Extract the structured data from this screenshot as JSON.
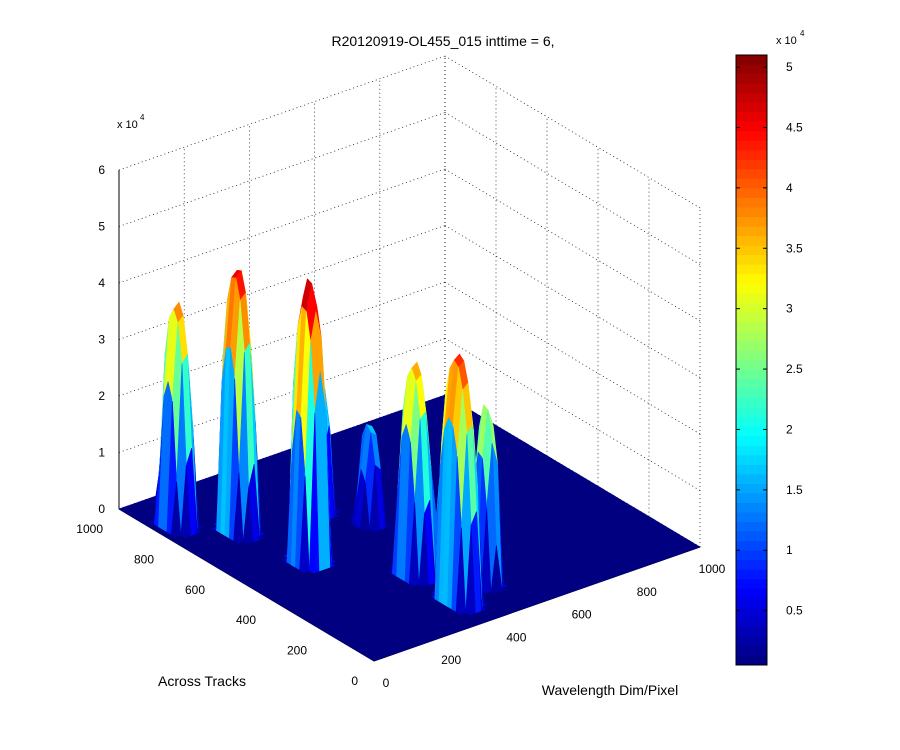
{
  "chart_data": {
    "type": "surface3d",
    "title": "R20120919-OL455_015 inttime = 6,",
    "xlabel": "Wavelength Dim/Pixel",
    "ylabel": "Across Tracks",
    "zlabel": "",
    "x_ticks": [
      0,
      200,
      400,
      600,
      800,
      1000
    ],
    "y_ticks": [
      0,
      200,
      400,
      600,
      800,
      1000
    ],
    "z_ticks": [
      0,
      1,
      2,
      3,
      4,
      5,
      6
    ],
    "z_exponent_base": "x 10",
    "z_exponent_power": "4",
    "xlim": [
      0,
      1000
    ],
    "ylim": [
      0,
      1000
    ],
    "zlim": [
      0,
      60000
    ],
    "grid": true,
    "colormap": "jet",
    "colorbar": {
      "ticks": [
        0.5,
        1,
        1.5,
        2,
        2.5,
        3,
        3.5,
        4,
        4.5,
        5
      ],
      "tick_labels": [
        "0.5",
        "1",
        "1.5",
        "2",
        "2.5",
        "3",
        "3.5",
        "4",
        "4.5",
        "5"
      ],
      "range": [
        0.05,
        5.1
      ],
      "exponent_base": "x 10",
      "exponent_power": "4"
    },
    "peaks": [
      {
        "track": 130,
        "wavelength": 360,
        "height": 44000,
        "track_width": 70,
        "wavelength_width": 40
      },
      {
        "track": 300,
        "wavelength": 360,
        "height": 38000,
        "track_width": 55,
        "wavelength_width": 38
      },
      {
        "track": 510,
        "wavelength": 200,
        "height": 50000,
        "track_width": 60,
        "wavelength_width": 40
      },
      {
        "track": 740,
        "wavelength": 160,
        "height": 47000,
        "track_width": 60,
        "wavelength_width": 38
      },
      {
        "track": 850,
        "wavelength": 60,
        "height": 40000,
        "track_width": 55,
        "wavelength_width": 35
      },
      {
        "track": 900,
        "wavelength": 300,
        "height": 12000,
        "track_width": 40,
        "wavelength_width": 30
      },
      {
        "track": 700,
        "wavelength": 380,
        "height": 24000,
        "track_width": 45,
        "wavelength_width": 28
      },
      {
        "track": 240,
        "wavelength": 420,
        "height": 27000,
        "track_width": 45,
        "wavelength_width": 28
      },
      {
        "track": 160,
        "wavelength": 470,
        "height": 32000,
        "track_width": 45,
        "wavelength_width": 30
      },
      {
        "track": 580,
        "wavelength": 440,
        "height": 18000,
        "track_width": 40,
        "wavelength_width": 28
      },
      {
        "track": 960,
        "wavelength": 120,
        "height": 9000,
        "track_width": 30,
        "wavelength_width": 30
      }
    ]
  }
}
